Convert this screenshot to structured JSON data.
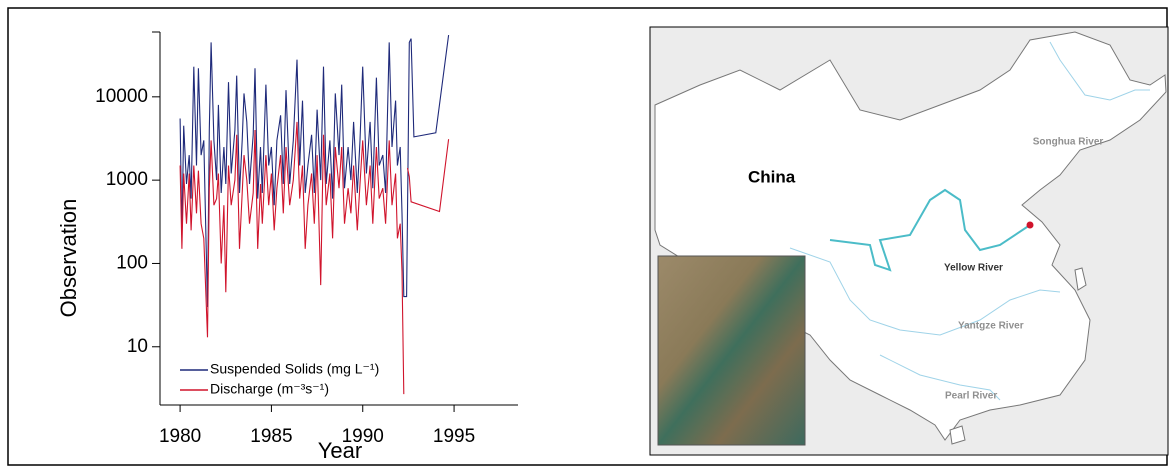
{
  "chart_data": {
    "type": "line",
    "log_y": true,
    "xlabel": "Year",
    "ylabel": "Observation",
    "xlim": [
      1978.9,
      1998.5
    ],
    "ylim": [
      2,
      60000
    ],
    "xticks": [
      1980,
      1985,
      1990,
      1995
    ],
    "yticks": [
      10,
      100,
      1000,
      10000
    ],
    "legend": "lower left",
    "series": [
      {
        "name": "Suspended Solids (mg L⁻¹)",
        "color": "#1f2a7a",
        "x": [
          1980.0,
          1980.1,
          1980.2,
          1980.35,
          1980.5,
          1980.6,
          1980.75,
          1980.9,
          1981.0,
          1981.15,
          1981.3,
          1981.5,
          1981.6,
          1981.7,
          1981.85,
          1982.0,
          1982.1,
          1982.25,
          1982.4,
          1982.5,
          1982.65,
          1982.8,
          1983.0,
          1983.1,
          1983.25,
          1983.4,
          1983.5,
          1983.65,
          1983.8,
          1984.0,
          1984.1,
          1984.25,
          1984.4,
          1984.5,
          1984.7,
          1984.85,
          1985.0,
          1985.15,
          1985.3,
          1985.5,
          1985.65,
          1985.8,
          1986.0,
          1986.2,
          1986.4,
          1986.55,
          1986.7,
          1986.85,
          1987.0,
          1987.2,
          1987.35,
          1987.5,
          1987.7,
          1987.85,
          1988.0,
          1988.2,
          1988.35,
          1988.5,
          1988.7,
          1988.85,
          1989.0,
          1989.2,
          1989.35,
          1989.5,
          1989.7,
          1989.85,
          1990.0,
          1990.2,
          1990.4,
          1990.55,
          1990.75,
          1990.9,
          1991.1,
          1991.25,
          1991.45,
          1991.6,
          1991.8,
          1991.9,
          1992.05,
          1992.15,
          1992.25,
          1992.4,
          1992.55,
          1992.65,
          1992.8,
          1994.0,
          1994.7
        ],
        "values": [
          5500,
          220,
          4500,
          900,
          2000,
          600,
          23000,
          1500,
          22000,
          2000,
          3000,
          30,
          4000,
          45000,
          3000,
          1000,
          8000,
          700,
          2500,
          900,
          15000,
          1200,
          4000,
          18000,
          700,
          3000,
          11000,
          5000,
          900,
          3500,
          22000,
          600,
          2500,
          700,
          14000,
          1500,
          2500,
          500,
          3000,
          6000,
          900,
          12000,
          900,
          3000,
          28000,
          1500,
          9000,
          700,
          1500,
          3500,
          700,
          7000,
          1000,
          23000,
          900,
          3000,
          600,
          11000,
          2000,
          14000,
          800,
          2500,
          1000,
          5000,
          700,
          3000,
          23000,
          1200,
          5000,
          800,
          17000,
          1500,
          2000,
          700,
          45000,
          2500,
          9000,
          1500,
          2500,
          400,
          40,
          40,
          45000,
          50000,
          3300,
          3700,
          55000
        ]
      },
      {
        "name": "Discharge (m⁻³s⁻¹)",
        "color": "#d0142c",
        "x": [
          1980.0,
          1980.1,
          1980.2,
          1980.35,
          1980.5,
          1980.6,
          1980.75,
          1980.9,
          1981.0,
          1981.15,
          1981.3,
          1981.5,
          1981.6,
          1981.7,
          1981.85,
          1982.0,
          1982.1,
          1982.25,
          1982.4,
          1982.5,
          1982.65,
          1982.8,
          1983.0,
          1983.1,
          1983.25,
          1983.4,
          1983.5,
          1983.65,
          1983.8,
          1984.0,
          1984.1,
          1984.25,
          1984.4,
          1984.5,
          1984.7,
          1984.85,
          1985.0,
          1985.15,
          1985.3,
          1985.5,
          1985.65,
          1985.8,
          1986.0,
          1986.2,
          1986.4,
          1986.55,
          1986.7,
          1986.85,
          1987.0,
          1987.2,
          1987.35,
          1987.5,
          1987.7,
          1987.85,
          1988.0,
          1988.2,
          1988.35,
          1988.5,
          1988.7,
          1988.85,
          1989.0,
          1989.2,
          1989.35,
          1989.5,
          1989.7,
          1989.85,
          1990.0,
          1990.2,
          1990.4,
          1990.55,
          1990.75,
          1990.9,
          1991.1,
          1991.25,
          1991.45,
          1991.6,
          1991.8,
          1991.9,
          1992.05,
          1992.15,
          1992.25,
          1992.35,
          1992.45,
          1992.55,
          1992.65,
          1994.2,
          1994.7
        ],
        "values": [
          1500,
          150,
          1200,
          300,
          1200,
          250,
          1500,
          400,
          1300,
          300,
          200,
          13,
          800,
          3000,
          500,
          600,
          1200,
          100,
          500,
          45,
          1500,
          500,
          1000,
          3500,
          150,
          700,
          2000,
          1000,
          300,
          700,
          4000,
          150,
          900,
          300,
          2000,
          500,
          1200,
          250,
          800,
          2000,
          400,
          2500,
          500,
          1000,
          5000,
          600,
          1500,
          150,
          500,
          1200,
          300,
          2000,
          55,
          3500,
          500,
          1200,
          200,
          2500,
          800,
          2500,
          300,
          800,
          400,
          1500,
          250,
          900,
          3000,
          500,
          1500,
          300,
          2500,
          600,
          800,
          300,
          3000,
          500,
          1200,
          200,
          300,
          80,
          2.7,
          null,
          1400,
          1100,
          550,
          420,
          3100
        ]
      }
    ]
  },
  "map": {
    "country": "China",
    "rivers": [
      "Songhua River",
      "Yellow River",
      "Yantgze River",
      "Pearl River"
    ]
  }
}
